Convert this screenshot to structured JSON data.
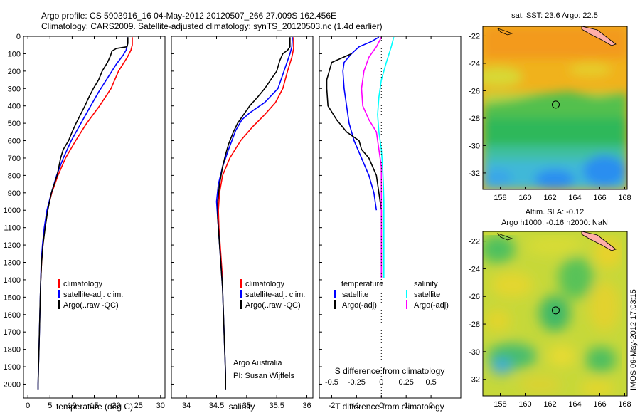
{
  "header": {
    "line1": "Argo profile: CS 5903916_16 04-May-2012 20120507_266 27.009S 162.456E",
    "line2": "Climatology: CARS2009. Satellite-adjusted climatology: synTS_20120503.nc (1.4d earlier)"
  },
  "chart_data": [
    {
      "type": "line",
      "id": "temperature-profile",
      "xlabel": "temperature (deg C)",
      "ylabel": "",
      "xlim": [
        -1,
        31
      ],
      "ylim": [
        2080,
        0
      ],
      "x_ticks": [
        "0",
        "5",
        "10",
        "15",
        "20",
        "25",
        "30"
      ],
      "y_ticks": [
        "0",
        "100",
        "200",
        "300",
        "400",
        "500",
        "600",
        "700",
        "800",
        "900",
        "1000",
        "1100",
        "1200",
        "1300",
        "1400",
        "1500",
        "1600",
        "1700",
        "1800",
        "1900",
        "2000"
      ],
      "legend": [
        "climatology",
        "satellite-adj. clim.",
        "Argo(..raw -QC)"
      ],
      "series": [
        {
          "name": "climatology",
          "color": "#ff0000",
          "points": [
            [
              23.6,
              5
            ],
            [
              23.6,
              50
            ],
            [
              23.3,
              80
            ],
            [
              22.5,
              120
            ],
            [
              20.5,
              200
            ],
            [
              18.8,
              300
            ],
            [
              16.2,
              400
            ],
            [
              13.3,
              500
            ],
            [
              10.8,
              600
            ],
            [
              8.5,
              700
            ],
            [
              6.8,
              800
            ],
            [
              5.4,
              900
            ],
            [
              4.4,
              1000
            ],
            [
              3.8,
              1100
            ],
            [
              3.4,
              1200
            ],
            [
              3.1,
              1300
            ],
            [
              2.9,
              1400
            ]
          ]
        },
        {
          "name": "satellite-adj. clim.",
          "color": "#0000ff",
          "points": [
            [
              22.5,
              5
            ],
            [
              22.5,
              50
            ],
            [
              22.2,
              80
            ],
            [
              21.5,
              110
            ],
            [
              20.0,
              160
            ],
            [
              18.0,
              240
            ],
            [
              16.0,
              320
            ],
            [
              14.2,
              400
            ],
            [
              12.0,
              500
            ],
            [
              9.8,
              600
            ],
            [
              8.0,
              700
            ],
            [
              6.5,
              800
            ],
            [
              5.3,
              900
            ],
            [
              4.3,
              1000
            ],
            [
              3.7,
              1100
            ],
            [
              3.3,
              1200
            ],
            [
              3.0,
              1300
            ],
            [
              2.9,
              1400
            ],
            [
              2.8,
              1500
            ],
            [
              2.7,
              1600
            ],
            [
              2.6,
              1700
            ],
            [
              2.5,
              1800
            ],
            [
              2.4,
              1900
            ],
            [
              2.3,
              2000
            ],
            [
              2.3,
              2030
            ]
          ]
        },
        {
          "name": "Argo(..raw -QC)",
          "color": "#000000",
          "points": [
            [
              22.6,
              5
            ],
            [
              22.6,
              40
            ],
            [
              22.4,
              60
            ],
            [
              20.0,
              70
            ],
            [
              19.0,
              85
            ],
            [
              18.7,
              110
            ],
            [
              18.0,
              150
            ],
            [
              16.8,
              200
            ],
            [
              16.0,
              250
            ],
            [
              14.8,
              300
            ],
            [
              13.8,
              350
            ],
            [
              12.9,
              400
            ],
            [
              11.9,
              450
            ],
            [
              10.9,
              500
            ],
            [
              10.0,
              550
            ],
            [
              9.2,
              600
            ],
            [
              8.0,
              650
            ],
            [
              7.4,
              700
            ],
            [
              6.6,
              800
            ],
            [
              5.3,
              900
            ],
            [
              4.5,
              1000
            ],
            [
              3.9,
              1100
            ],
            [
              3.4,
              1200
            ],
            [
              3.1,
              1300
            ],
            [
              2.9,
              1400
            ],
            [
              2.8,
              1500
            ],
            [
              2.7,
              1600
            ],
            [
              2.6,
              1700
            ],
            [
              2.5,
              1800
            ],
            [
              2.4,
              1900
            ],
            [
              2.3,
              2000
            ],
            [
              2.3,
              2030
            ]
          ]
        }
      ]
    },
    {
      "type": "line",
      "id": "salinity-profile",
      "xlabel": "salinity",
      "xlim": [
        33.75,
        36.1
      ],
      "ylim": [
        2080,
        0
      ],
      "x_ticks": [
        "34",
        "34.5",
        "35",
        "35.5",
        "36"
      ],
      "legend": [
        "climatology",
        "satellite-adj. clim.",
        "Argo(..raw -QC)"
      ],
      "annotation": [
        "Argo Australia",
        "PI: Susan Wijffels"
      ],
      "series": [
        {
          "name": "climatology",
          "color": "#ff0000",
          "points": [
            [
              35.78,
              5
            ],
            [
              35.78,
              70
            ],
            [
              35.75,
              120
            ],
            [
              35.68,
              200
            ],
            [
              35.6,
              300
            ],
            [
              35.48,
              380
            ],
            [
              35.3,
              450
            ],
            [
              35.1,
              520
            ],
            [
              34.9,
              600
            ],
            [
              34.72,
              700
            ],
            [
              34.6,
              800
            ],
            [
              34.55,
              900
            ],
            [
              34.53,
              1000
            ],
            [
              34.54,
              1100
            ],
            [
              34.56,
              1200
            ],
            [
              34.58,
              1300
            ],
            [
              34.6,
              1400
            ]
          ]
        },
        {
          "name": "satellite-adj. clim.",
          "color": "#0000ff",
          "points": [
            [
              35.76,
              5
            ],
            [
              35.75,
              60
            ],
            [
              35.72,
              100
            ],
            [
              35.62,
              200
            ],
            [
              35.52,
              300
            ],
            [
              35.3,
              380
            ],
            [
              35.05,
              440
            ],
            [
              34.92,
              480
            ],
            [
              34.82,
              540
            ],
            [
              34.7,
              650
            ],
            [
              34.6,
              750
            ],
            [
              34.53,
              850
            ],
            [
              34.5,
              950
            ],
            [
              34.52,
              1050
            ],
            [
              34.54,
              1150
            ],
            [
              34.56,
              1250
            ],
            [
              34.58,
              1350
            ],
            [
              34.6,
              1450
            ],
            [
              34.61,
              1550
            ],
            [
              34.62,
              1650
            ],
            [
              34.63,
              1750
            ],
            [
              34.64,
              1850
            ],
            [
              34.65,
              1950
            ],
            [
              34.65,
              2030
            ]
          ]
        },
        {
          "name": "Argo(..raw -QC)",
          "color": "#000000",
          "points": [
            [
              35.72,
              5
            ],
            [
              35.72,
              60
            ],
            [
              35.68,
              80
            ],
            [
              35.6,
              100
            ],
            [
              35.55,
              140
            ],
            [
              35.5,
              200
            ],
            [
              35.4,
              250
            ],
            [
              35.3,
              300
            ],
            [
              35.18,
              350
            ],
            [
              35.05,
              400
            ],
            [
              34.95,
              450
            ],
            [
              34.85,
              500
            ],
            [
              34.78,
              550
            ],
            [
              34.7,
              620
            ],
            [
              34.65,
              680
            ],
            [
              34.6,
              750
            ],
            [
              34.55,
              850
            ],
            [
              34.52,
              950
            ],
            [
              34.52,
              1050
            ],
            [
              34.54,
              1150
            ],
            [
              34.56,
              1250
            ],
            [
              34.58,
              1350
            ],
            [
              34.6,
              1450
            ],
            [
              34.61,
              1550
            ],
            [
              34.62,
              1650
            ],
            [
              34.63,
              1750
            ],
            [
              34.64,
              1850
            ],
            [
              34.65,
              1950
            ],
            [
              34.65,
              2030
            ]
          ]
        }
      ]
    },
    {
      "type": "line",
      "id": "difference-profile",
      "xlabel": "T difference from climatology",
      "xlabel_top": "S difference from climatology",
      "xlim": [
        -2.5,
        3.2
      ],
      "s_ticks": [
        "-0.5",
        "-0.25",
        "0",
        "0.25",
        "0.5"
      ],
      "s_tick_values": [
        -2,
        -1,
        0,
        1,
        2
      ],
      "t_ticks": [
        "-2",
        "-1",
        "0",
        "1",
        "2"
      ],
      "t_tick_values": [
        -2,
        -1,
        0,
        1,
        2
      ],
      "legend_groups": [
        {
          "title": "temperature",
          "entries": [
            "satellite",
            "Argo(-adj)"
          ]
        },
        {
          "title": "salinity",
          "entries": [
            "satellite",
            "Argo(-adj)"
          ]
        }
      ],
      "series": [
        {
          "name": "temperature satellite",
          "color": "#0000ff",
          "points": [
            [
              -0.1,
              5
            ],
            [
              -0.4,
              30
            ],
            [
              -0.9,
              60
            ],
            [
              -1.2,
              100
            ],
            [
              -1.5,
              150
            ],
            [
              -1.55,
              200
            ],
            [
              -1.5,
              300
            ],
            [
              -1.4,
              400
            ],
            [
              -1.3,
              500
            ],
            [
              -1.1,
              600
            ],
            [
              -0.8,
              700
            ],
            [
              -0.5,
              800
            ],
            [
              -0.3,
              900
            ],
            [
              -0.2,
              1000
            ]
          ]
        },
        {
          "name": "temperature Argo(-adj)",
          "color": "#000000",
          "points": [
            [
              -1.2,
              100
            ],
            [
              -2.0,
              150
            ],
            [
              -2.1,
              200
            ],
            [
              -2.2,
              250
            ],
            [
              -2.2,
              300
            ],
            [
              -2.15,
              400
            ],
            [
              -1.8,
              480
            ],
            [
              -1.4,
              550
            ],
            [
              -0.9,
              600
            ],
            [
              -0.8,
              650
            ],
            [
              -0.5,
              700
            ],
            [
              -0.2,
              800
            ],
            [
              -0.1,
              900
            ],
            [
              0.0,
              1000
            ],
            [
              0.0,
              1100
            ],
            [
              0.0,
              1200
            ],
            [
              0.0,
              1300
            ],
            [
              0.0,
              1390
            ]
          ]
        },
        {
          "name": "salinity satellite",
          "color": "#00ffff",
          "points": [
            [
              0.5,
              5
            ],
            [
              0.4,
              60
            ],
            [
              0.2,
              150
            ],
            [
              0.0,
              250
            ],
            [
              -0.1,
              350
            ],
            [
              -0.15,
              450
            ],
            [
              -0.1,
              550
            ],
            [
              0.0,
              650
            ],
            [
              0.05,
              750
            ],
            [
              0.08,
              850
            ],
            [
              0.1,
              950
            ],
            [
              0.1,
              1100
            ],
            [
              0.1,
              1200
            ],
            [
              0.1,
              1300
            ],
            [
              0.1,
              1390
            ]
          ]
        },
        {
          "name": "salinity Argo(-adj)",
          "color": "#ff00ff",
          "points": [
            [
              0.0,
              5
            ],
            [
              -0.2,
              60
            ],
            [
              -0.5,
              120
            ],
            [
              -0.7,
              200
            ],
            [
              -0.8,
              300
            ],
            [
              -0.75,
              400
            ],
            [
              -0.5,
              480
            ],
            [
              -0.2,
              550
            ],
            [
              -0.1,
              650
            ],
            [
              0.0,
              750
            ],
            [
              0.0,
              850
            ],
            [
              0.0,
              950
            ],
            [
              0.0,
              1100
            ],
            [
              0.0,
              1200
            ],
            [
              0.0,
              1300
            ],
            [
              0.0,
              1390
            ]
          ]
        }
      ]
    },
    {
      "type": "heatmap",
      "id": "sst-map",
      "title": "sat. SST: 23.6 Argo: 22.5",
      "x_ticks": [
        "158",
        "160",
        "162",
        "164",
        "166",
        "168"
      ],
      "y_ticks": [
        "-22",
        "-24",
        "-26",
        "-28",
        "-30",
        "-32"
      ],
      "xlim": [
        156.6,
        168.2
      ],
      "ylim": [
        -33.2,
        -21.3
      ],
      "marker": [
        162.456,
        -27.009
      ]
    },
    {
      "type": "heatmap",
      "id": "sla-map",
      "title_line1": "Altim. SLA: -0.12",
      "title_line2": "Argo h1000: -0.16 h2000: NaN",
      "x_ticks": [
        "158",
        "160",
        "162",
        "164",
        "166",
        "168"
      ],
      "y_ticks": [
        "-22",
        "-24",
        "-26",
        "-28",
        "-30",
        "-32"
      ],
      "xlim": [
        156.6,
        168.2
      ],
      "ylim": [
        -33.2,
        -21.3
      ],
      "marker": [
        162.456,
        -27.009
      ]
    }
  ],
  "footer": {
    "stamp": "IMOS 09-May-2012 17:03:15"
  }
}
